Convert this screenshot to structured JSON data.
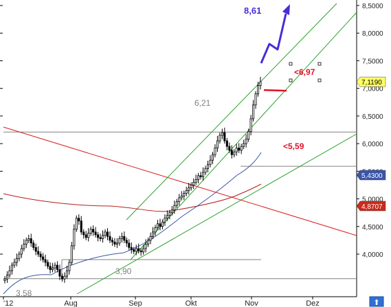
{
  "chart_data": {
    "type": "candlestick",
    "x_tick_labels": [
      "'12",
      "Aug",
      "Sep",
      "Okt",
      "Nov",
      "Dez"
    ],
    "y_tick_labels": [
      "4,0000",
      "4,5000",
      "5,0000",
      "5,5000",
      "6,0000",
      "6,5000",
      "7,0000",
      "7,5000",
      "8,0000",
      "8,5000"
    ],
    "y_tick_values": [
      4.0,
      4.5,
      5.0,
      5.5,
      6.0,
      6.5,
      7.0,
      7.5,
      8.0,
      8.5
    ],
    "ylim": [
      3.42,
      8.6
    ],
    "grid": false,
    "price_badges": [
      {
        "label": "7,1190",
        "value": 7.119,
        "bg": "#ffff66",
        "fg": "#000000"
      },
      {
        "label": "5,4300",
        "value": 5.43,
        "bg": "#3b55a8",
        "fg": "#ffffff"
      },
      {
        "label": "4,8707",
        "value": 4.8707,
        "bg": "#cc2a1a",
        "fg": "#ffffff"
      }
    ],
    "annotations": [
      {
        "text": "8,61",
        "style": "blue"
      },
      {
        "text": "<6,97",
        "style": "red"
      },
      {
        "text": "6,21",
        "style": "gray"
      },
      {
        "text": "<5,59",
        "style": "red"
      },
      {
        "text": "3,90",
        "style": "gray"
      },
      {
        "text": "3,58",
        "style": "gray"
      }
    ],
    "horizontal_levels": [
      6.21,
      5.59,
      3.9,
      3.58
    ],
    "moving_average_blue_end": 5.43,
    "moving_average_red_end": 4.8707,
    "last_close": 7.119,
    "colors": {
      "candle": "#000000",
      "channel": "#2aa12a",
      "downtrend": "#d81e1e",
      "ma_blue": "#3b55a8",
      "ma_red": "#b81d1d",
      "projection": "#4a2bd8",
      "level_line": "#808080",
      "stop_line": "#e0102a"
    }
  }
}
